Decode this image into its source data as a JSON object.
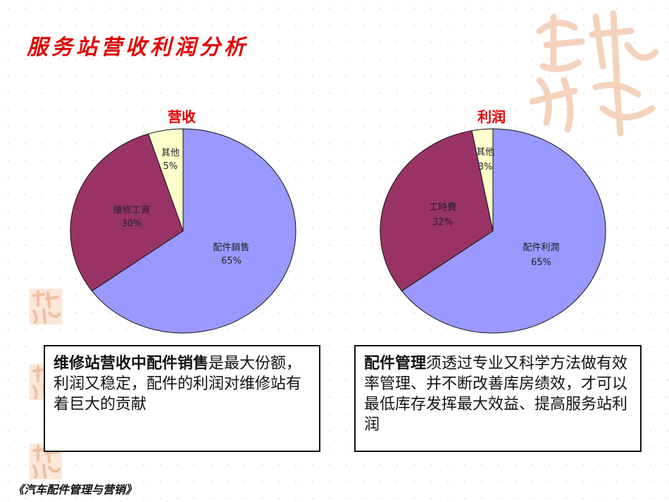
{
  "page": {
    "title": "服务站营收利润分析",
    "footer": "《汽车配件管理与营销》"
  },
  "colors": {
    "title_red": "#e00000",
    "slice_blue": "#9999ff",
    "slice_maroon": "#993366",
    "slice_cream": "#ffffcc",
    "seal": "#f4d2bc"
  },
  "decor": {
    "seal_text": "吉祥如意"
  },
  "chart_data": [
    {
      "type": "pie",
      "title": "营收",
      "categories": [
        "配件銷售",
        "維修工資",
        "其他"
      ],
      "values": [
        65,
        30,
        5
      ],
      "value_labels": [
        "65%",
        "30%",
        "5%"
      ],
      "colors": [
        "#9999ff",
        "#993366",
        "#ffffcc"
      ]
    },
    {
      "type": "pie",
      "title": "利润",
      "categories": [
        "配件利潤",
        "工時費",
        "其他"
      ],
      "values": [
        65,
        32,
        3
      ],
      "value_labels": [
        "65%",
        "32%",
        "3%"
      ],
      "colors": [
        "#9999ff",
        "#993366",
        "#ffffcc"
      ]
    }
  ],
  "callouts": [
    {
      "bold": "维修站营收中配件销售",
      "text": "是最大份额，利润又稳定，配件的利润对维修站有着巨大的贡献"
    },
    {
      "bold": "配件管理",
      "text": "须透过专业又科学方法做有效率管理、并不断改善库房绩效，才可以最低库存发挥最大效益、提高服务站利润"
    }
  ]
}
